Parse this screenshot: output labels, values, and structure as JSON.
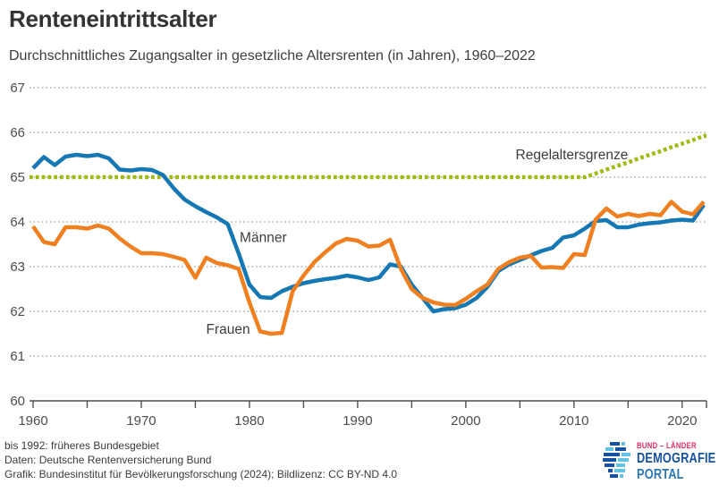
{
  "chart_data": {
    "type": "line",
    "title": "Renteneintrittsalter",
    "subtitle": "Durchschnittliches Zugangsalter in gesetzliche Altersrenten (in Jahren), 1960–2022",
    "x": [
      1960,
      1961,
      1962,
      1963,
      1964,
      1965,
      1966,
      1967,
      1968,
      1969,
      1970,
      1971,
      1972,
      1973,
      1974,
      1975,
      1976,
      1977,
      1978,
      1979,
      1980,
      1981,
      1982,
      1983,
      1984,
      1985,
      1986,
      1987,
      1988,
      1989,
      1990,
      1991,
      1992,
      1993,
      1994,
      1995,
      1996,
      1997,
      1998,
      1999,
      2000,
      2001,
      2002,
      2003,
      2004,
      2005,
      2006,
      2007,
      2008,
      2009,
      2010,
      2011,
      2012,
      2013,
      2014,
      2015,
      2016,
      2017,
      2018,
      2019,
      2020,
      2021,
      2022
    ],
    "series": [
      {
        "id": "maenner",
        "name": "Männer",
        "color": "#1577b4",
        "style": "solid",
        "values": [
          65.2,
          65.45,
          65.27,
          65.46,
          65.5,
          65.47,
          65.5,
          65.42,
          65.17,
          65.15,
          65.18,
          65.16,
          65.05,
          64.75,
          64.5,
          64.35,
          64.22,
          64.1,
          63.95,
          63.3,
          62.6,
          62.32,
          62.3,
          62.45,
          62.55,
          62.63,
          62.68,
          62.72,
          62.75,
          62.8,
          62.76,
          62.7,
          62.76,
          63.05,
          63.0,
          62.6,
          62.3,
          62.0,
          62.05,
          62.07,
          62.15,
          62.3,
          62.55,
          62.9,
          63.05,
          63.15,
          63.25,
          63.35,
          63.42,
          63.65,
          63.7,
          63.85,
          64.02,
          64.04,
          63.88,
          63.88,
          63.94,
          63.97,
          63.99,
          64.03,
          64.05,
          64.03,
          64.38
        ]
      },
      {
        "id": "frauen",
        "name": "Frauen",
        "color": "#f0801f",
        "style": "solid",
        "values": [
          63.9,
          63.55,
          63.5,
          63.88,
          63.88,
          63.85,
          63.92,
          63.85,
          63.63,
          63.45,
          63.3,
          63.3,
          63.28,
          63.22,
          63.15,
          62.75,
          63.2,
          63.08,
          63.03,
          62.95,
          62.2,
          61.55,
          61.5,
          61.52,
          62.45,
          62.8,
          63.1,
          63.32,
          63.52,
          63.62,
          63.58,
          63.45,
          63.47,
          63.6,
          62.95,
          62.5,
          62.3,
          62.2,
          62.15,
          62.14,
          62.28,
          62.45,
          62.6,
          62.95,
          63.1,
          63.2,
          63.24,
          62.98,
          62.99,
          62.97,
          63.28,
          63.26,
          64.05,
          64.3,
          64.12,
          64.18,
          64.13,
          64.18,
          64.15,
          64.45,
          64.23,
          64.17,
          64.45
        ]
      },
      {
        "id": "regelaltersgrenze",
        "name": "Regelaltersgrenze",
        "color": "#a3b90e",
        "style": "dotted",
        "extend_full": true,
        "values": [
          65,
          65,
          65,
          65,
          65,
          65,
          65,
          65,
          65,
          65,
          65,
          65,
          65,
          65,
          65,
          65,
          65,
          65,
          65,
          65,
          65,
          65,
          65,
          65,
          65,
          65,
          65,
          65,
          65,
          65,
          65,
          65,
          65,
          65,
          65,
          65,
          65,
          65,
          65,
          65,
          65,
          65,
          65,
          65,
          65,
          65,
          65,
          65,
          65,
          65,
          65,
          65,
          65.08,
          65.17,
          65.25,
          65.33,
          65.42,
          65.5,
          65.58,
          65.67,
          65.75,
          65.83,
          65.92
        ]
      }
    ],
    "ylim": [
      60,
      67
    ],
    "yticks": [
      60,
      61,
      62,
      63,
      64,
      65,
      66,
      67
    ],
    "xtick_labels": [
      1960,
      1970,
      1980,
      1990,
      2000,
      2010,
      2020
    ],
    "xticks_minor_every": 5,
    "grid": "horizontal-dotted",
    "legend_position": "inline-annotations",
    "annotations": [
      {
        "id": "maenner",
        "text": "Männer",
        "year": 1979.1,
        "age": 63.65,
        "anchor": "start"
      },
      {
        "id": "frauen",
        "text": "Frauen",
        "year": 1976.0,
        "age": 61.6,
        "anchor": "start"
      },
      {
        "id": "regelaltersgrenze",
        "text": "Regelaltersgrenze",
        "year": 2015.0,
        "age": 65.5,
        "anchor": "end"
      }
    ]
  },
  "footer": {
    "lines": [
      "bis 1992: früheres Bundesgebiet",
      "Daten: Deutsche Rentenversicherung Bund",
      "Grafik: Bundesinstitut für Bevölkerungsforschung (2024); Bildlizenz: CC BY-ND 4.0"
    ]
  },
  "logo": {
    "line1": "BUND – LÄNDER",
    "line2": "DEMOGRAFIE",
    "line3": "PORTAL",
    "colors": {
      "red": "#e62a5f",
      "dark_blue": "#1553a0",
      "light_blue": "#63c3e6"
    }
  }
}
